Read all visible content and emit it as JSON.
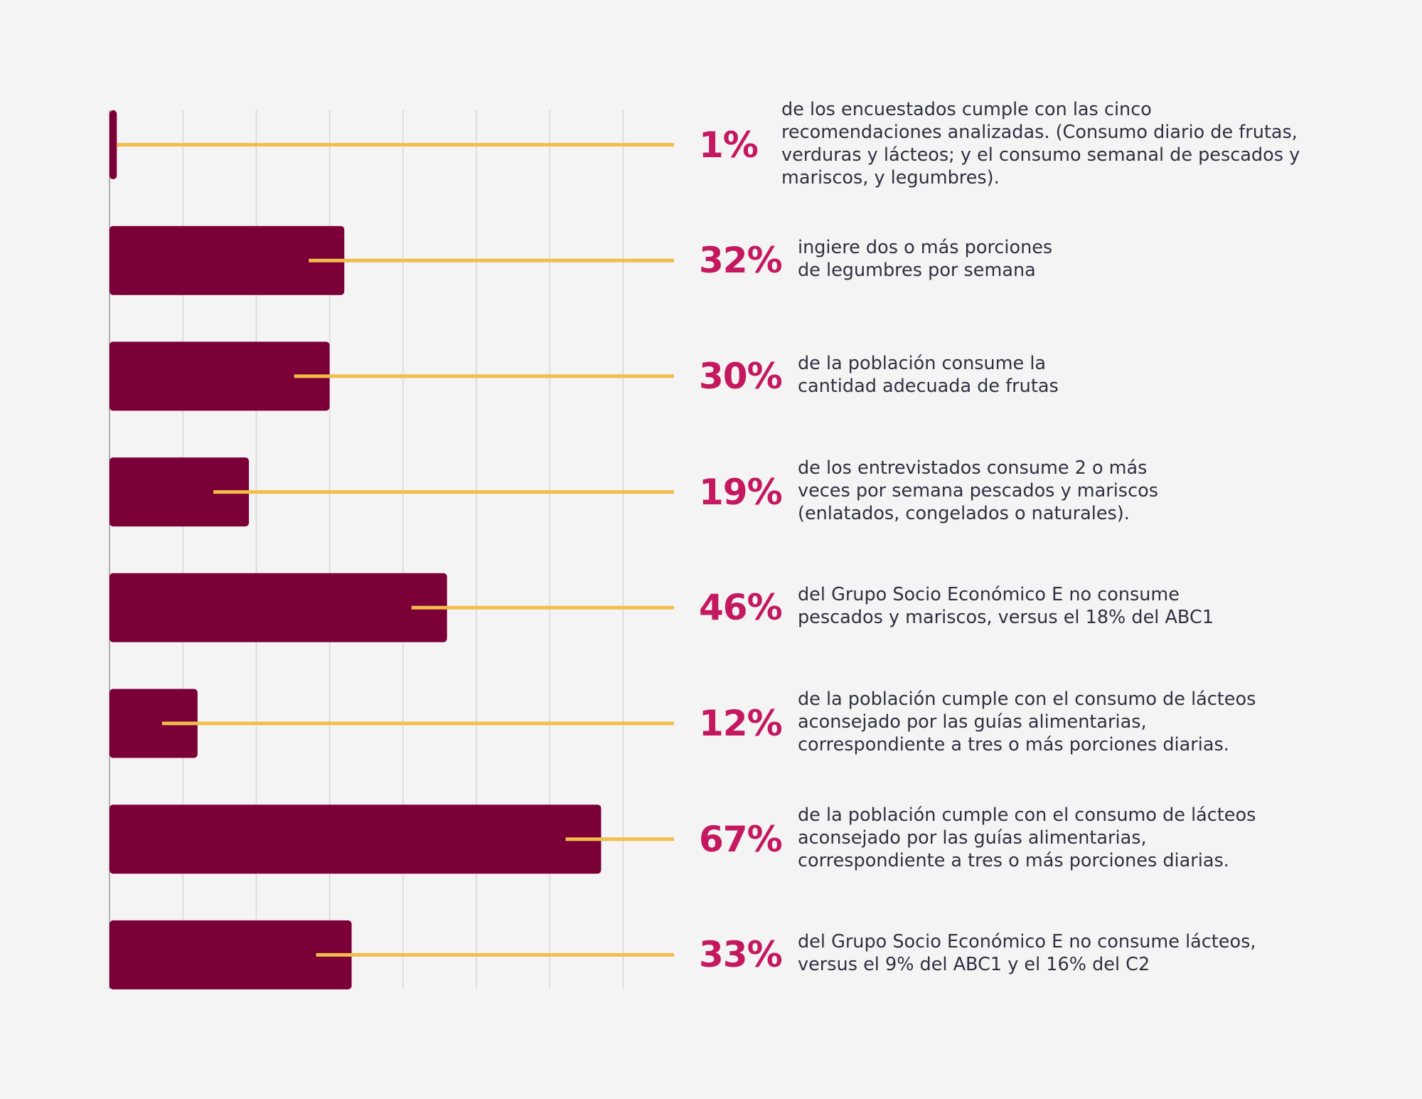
{
  "colors": {
    "background": "#f4f4f4",
    "bar": "#7a0037",
    "connector": "#f2bd4b",
    "percent_text": "#c4185f",
    "description_text": "#2f3140",
    "grid": "#d6d6d6"
  },
  "chart_data": {
    "type": "bar",
    "orientation": "horizontal",
    "xlim": [
      0,
      100
    ],
    "grid": true,
    "categories": [
      "1%",
      "32%",
      "30%",
      "19%",
      "46%",
      "12%",
      "67%",
      "33%"
    ],
    "values": [
      1,
      32,
      30,
      19,
      46,
      12,
      67,
      33
    ],
    "items": [
      {
        "percent_label": "1%",
        "value": 1,
        "description_lines": [
          "de los encuestados cumple con las cinco",
          "recomendaciones analizadas. (Consumo diario de frutas,",
          "verduras y lácteos; y el consumo semanal de pescados y",
          "mariscos, y legumbres)."
        ]
      },
      {
        "percent_label": "32%",
        "value": 32,
        "description_lines": [
          "ingiere dos o más porciones",
          "de legumbres por semana"
        ]
      },
      {
        "percent_label": "30%",
        "value": 30,
        "description_lines": [
          "de la población consume la",
          "cantidad adecuada de frutas"
        ]
      },
      {
        "percent_label": "19%",
        "value": 19,
        "description_lines": [
          "de los entrevistados consume 2 o más",
          "veces por semana pescados y mariscos",
          "(enlatados, congelados o naturales)."
        ]
      },
      {
        "percent_label": "46%",
        "value": 46,
        "description_lines": [
          "del Grupo Socio Económico E no consume",
          "pescados y mariscos, versus el 18% del ABC1"
        ]
      },
      {
        "percent_label": "12%",
        "value": 12,
        "description_lines": [
          "de la población cumple con el consumo de lácteos",
          "aconsejado por las guías alimentarias,",
          "correspondiente a tres o más porciones diarias."
        ]
      },
      {
        "percent_label": "67%",
        "value": 67,
        "description_lines": [
          "de la población cumple con el consumo de lácteos",
          "aconsejado por las guías alimentarias,",
          "correspondiente a tres o más porciones diarias."
        ]
      },
      {
        "percent_label": "33%",
        "value": 33,
        "description_lines": [
          "del Grupo Socio Económico E no consume lácteos,",
          "versus el 9% del ABC1 y el 16% del C2"
        ]
      }
    ]
  }
}
